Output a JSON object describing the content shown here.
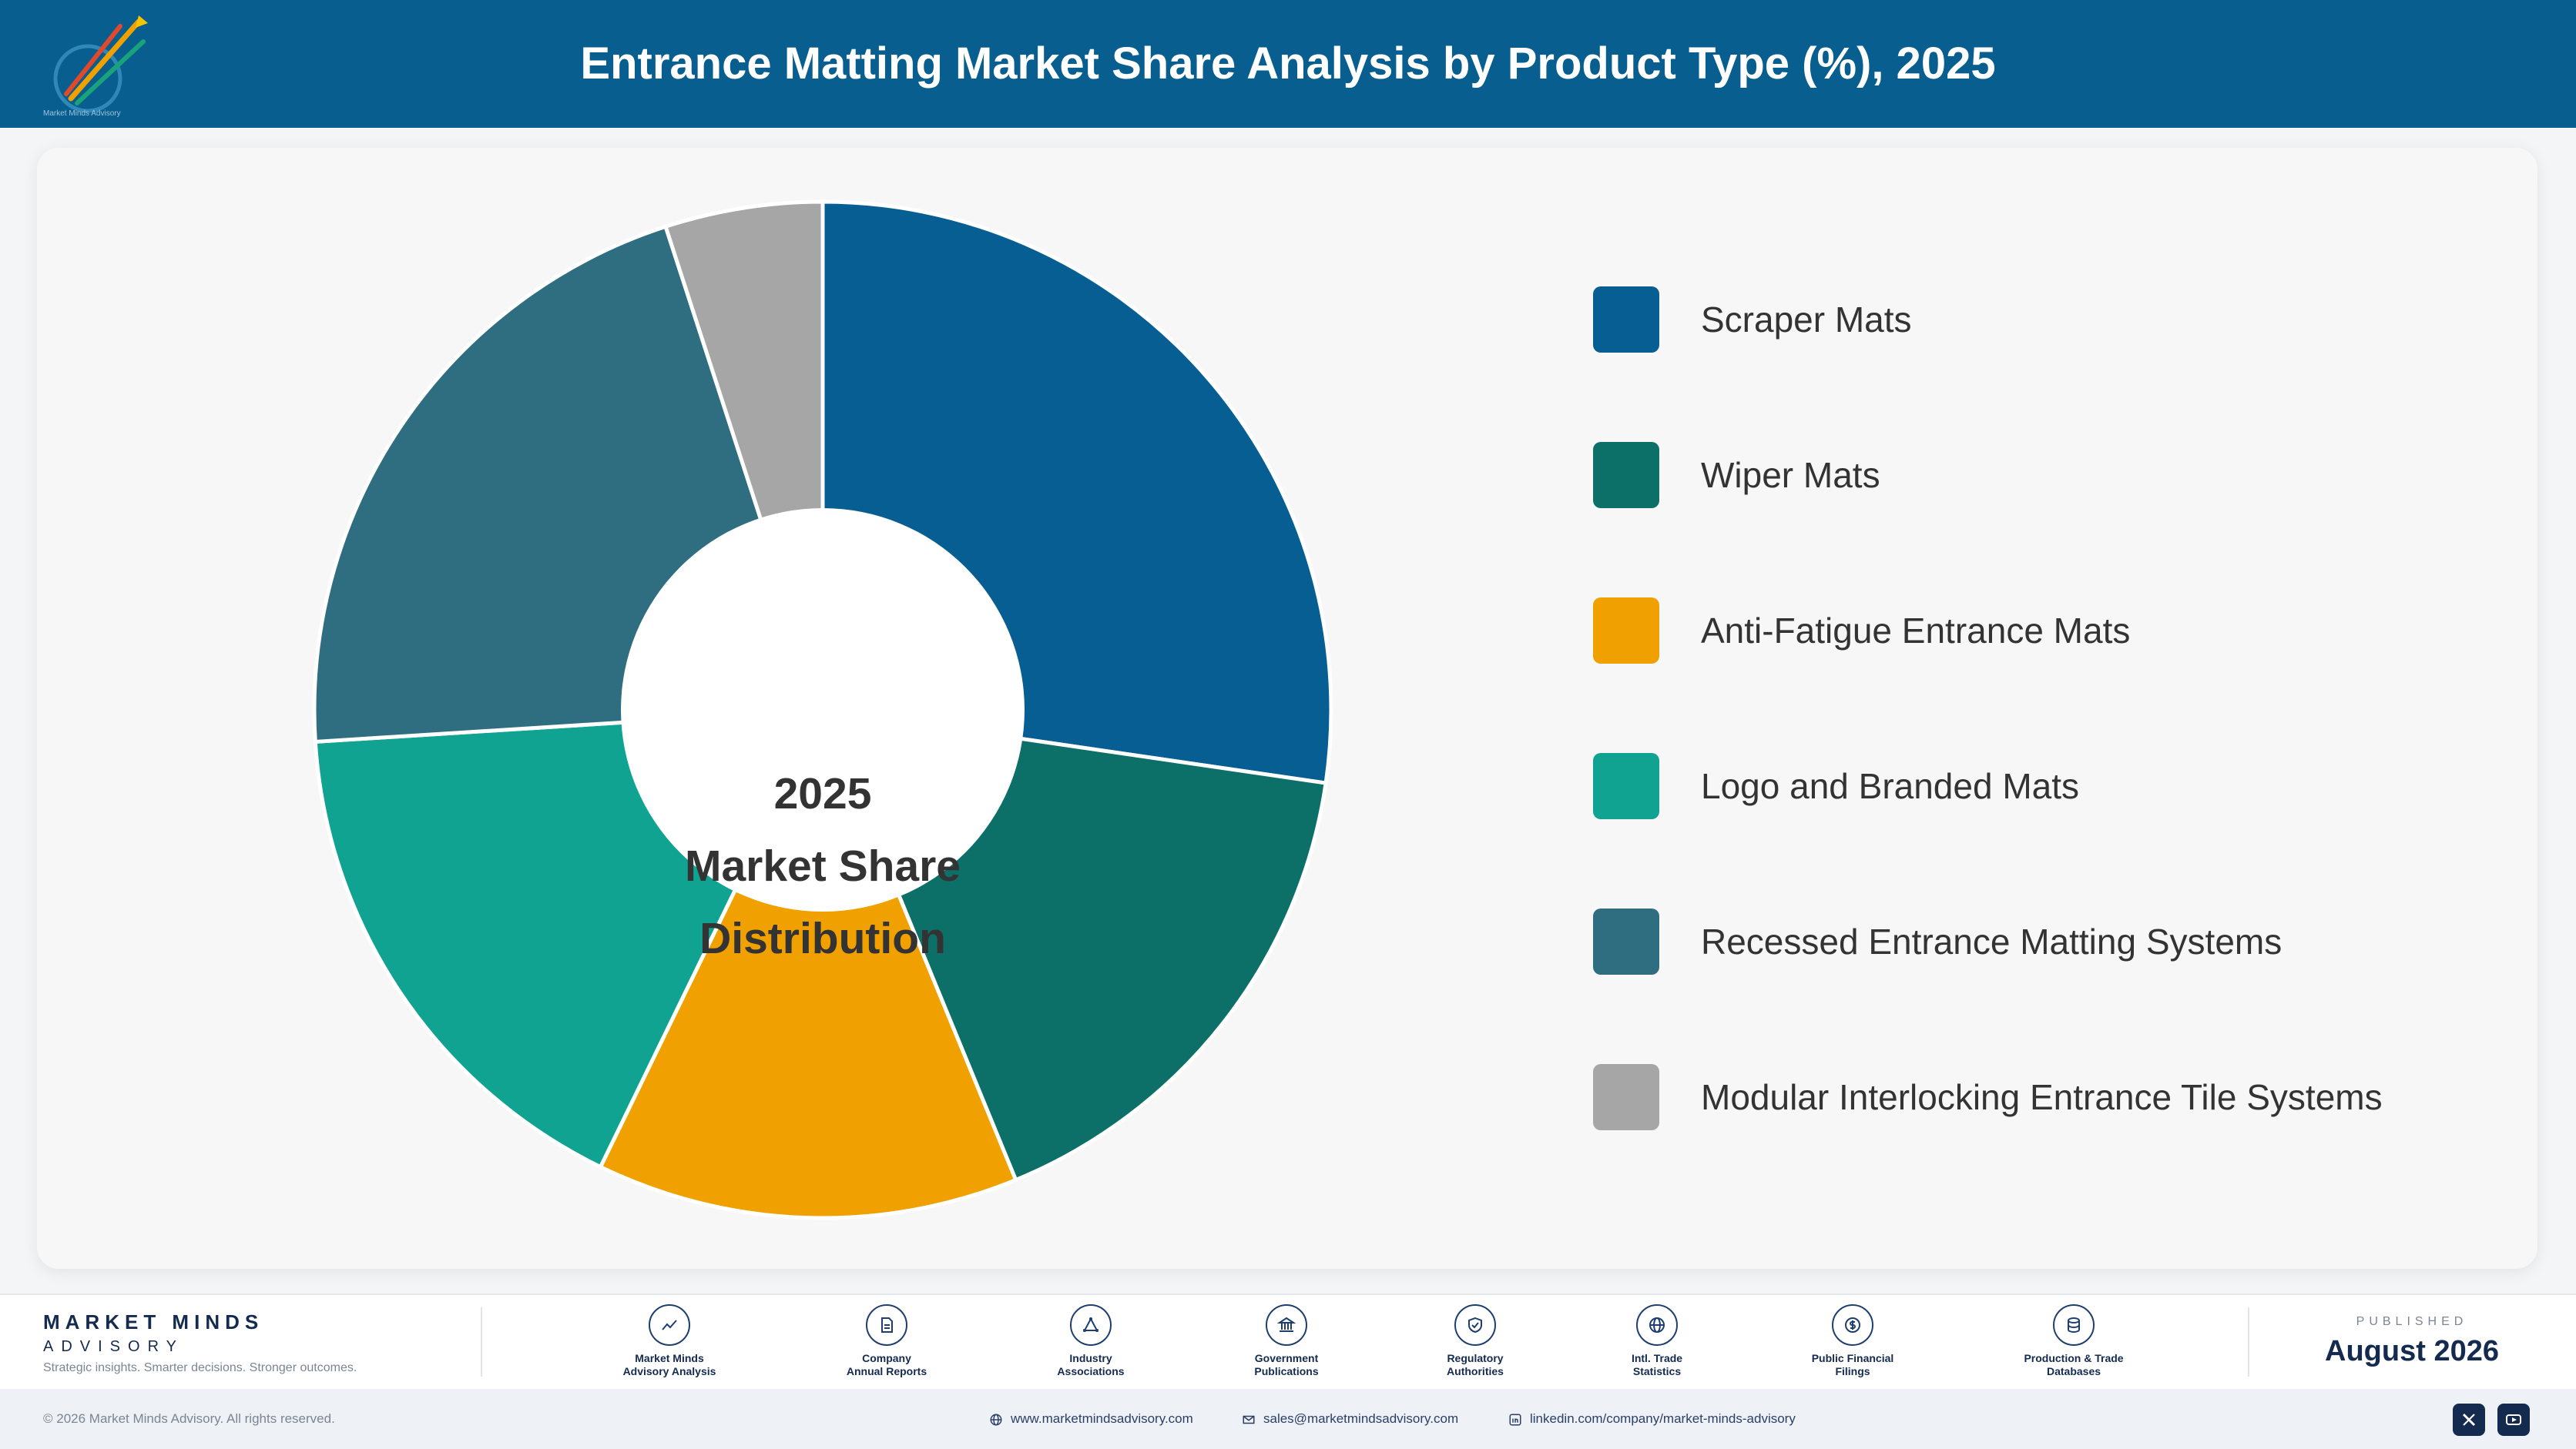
{
  "header": {
    "title": "Entrance Matting Market Share Analysis by Product Type (%), 2025",
    "logo_tagline": "Market Minds Advisory"
  },
  "colors": {
    "header_bg": "#075e8f",
    "brand_navy": "#142b4f"
  },
  "chart_data": {
    "type": "pie",
    "title": "Entrance Matting Market Share Analysis by Product Type (%), 2025",
    "center_label": [
      "2025",
      "Market Share",
      "Distribution"
    ],
    "legend_position": "right",
    "series": [
      {
        "name": "Scraper Mats",
        "value": 27.3,
        "color": "#075e93"
      },
      {
        "name": "Wiper Mats",
        "value": 16.5,
        "color": "#0c7068"
      },
      {
        "name": "Anti-Fatigue Entrance Mats",
        "value": 13.4,
        "color": "#f0a100"
      },
      {
        "name": "Logo and Branded Mats",
        "value": 16.8,
        "color": "#10a392"
      },
      {
        "name": "Recessed Entrance Matting Systems",
        "value": 21.0,
        "color": "#2f6d80"
      },
      {
        "name": "Modular Interlocking Entrance Tile Systems",
        "value": 5.0,
        "color": "#a6a6a6"
      }
    ]
  },
  "footer": {
    "brand_name": "MARKET MINDS",
    "brand_sub": "ADVISORY",
    "brand_tagline": "Strategic insights. Smarter decisions. Stronger outcomes.",
    "sources": [
      {
        "line1": "Market Minds",
        "line2": "Advisory Analysis",
        "icon": "trend-line-icon"
      },
      {
        "line1": "Company",
        "line2": "Annual Reports",
        "icon": "document-icon"
      },
      {
        "line1": "Industry",
        "line2": "Associations",
        "icon": "network-icon"
      },
      {
        "line1": "Government",
        "line2": "Publications",
        "icon": "government-building-icon"
      },
      {
        "line1": "Regulatory",
        "line2": "Authorities",
        "icon": "shield-check-icon"
      },
      {
        "line1": "Intl. Trade",
        "line2": "Statistics",
        "icon": "globe-icon"
      },
      {
        "line1": "Public Financial",
        "line2": "Filings",
        "icon": "dollar-coin-icon"
      },
      {
        "line1": "Production & Trade",
        "line2": "Databases",
        "icon": "database-icon"
      }
    ],
    "published_label": "PUBLISHED",
    "published_date": "August 2026"
  },
  "bottom": {
    "copyright": "© 2026 Market Minds Advisory. All rights reserved.",
    "website": "www.marketmindsadvisory.com",
    "email": "sales@marketmindsadvisory.com",
    "linkedin": "linkedin.com/company/market-minds-advisory",
    "social": [
      "x-icon",
      "youtube-icon"
    ]
  }
}
